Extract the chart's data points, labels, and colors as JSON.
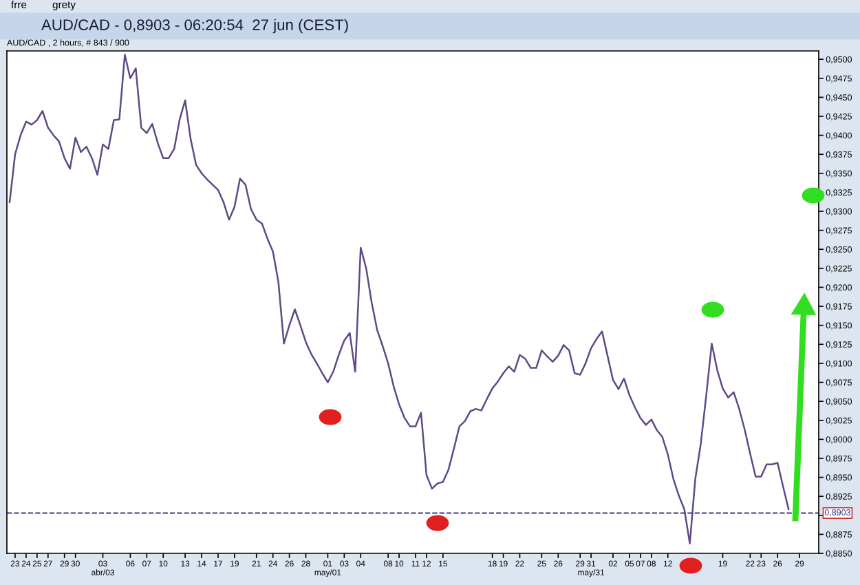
{
  "chart_data": {
    "type": "line",
    "title": "AUD/CAD - 0,8903 - 06:20:54  27 jun (CEST)",
    "subtitle": "AUD/CAD , 2 hours, # 843 / 900",
    "annotations": [
      "frre",
      "grety"
    ],
    "categories": [
      null,
      "23",
      null,
      "24",
      null,
      "25",
      null,
      "27",
      null,
      null,
      "29",
      null,
      "30",
      null,
      null,
      null,
      null,
      "03\nabr/03",
      null,
      null,
      null,
      null,
      "06",
      null,
      null,
      "07",
      null,
      null,
      "10",
      null,
      null,
      null,
      "13",
      null,
      null,
      "14",
      null,
      null,
      "17",
      null,
      null,
      "19",
      null,
      null,
      null,
      "21",
      null,
      null,
      "24",
      null,
      null,
      "26",
      null,
      null,
      "28",
      null,
      null,
      null,
      "01\nmay/01",
      null,
      null,
      "03",
      null,
      null,
      "04",
      null,
      null,
      null,
      null,
      "08",
      null,
      "10",
      null,
      null,
      "11",
      null,
      "12",
      null,
      null,
      "15",
      null,
      null,
      null,
      null,
      null,
      null,
      null,
      null,
      "18",
      null,
      "19",
      null,
      null,
      "22",
      null,
      null,
      null,
      "25",
      null,
      null,
      "26",
      null,
      null,
      null,
      "29",
      null,
      "31\nmay/31",
      null,
      null,
      null,
      "02",
      null,
      null,
      "05",
      null,
      "07",
      null,
      "08",
      null,
      null,
      "12",
      null,
      null,
      null,
      null,
      null,
      null,
      null,
      null,
      null,
      "19",
      null,
      null,
      null,
      null,
      "22",
      null,
      "23",
      null,
      null,
      "26",
      null,
      null,
      null,
      "29",
      null,
      null,
      null
    ],
    "series": [
      {
        "color": "#5e4a86",
        "values": [
          0.9312,
          0.9375,
          0.94,
          0.9418,
          0.9414,
          0.942,
          0.9432,
          0.941,
          0.94,
          0.9392,
          0.937,
          0.9356,
          0.9397,
          0.9378,
          0.9385,
          0.937,
          0.9348,
          0.9388,
          0.9382,
          0.942,
          0.9421,
          0.9506,
          0.9475,
          0.9488,
          0.941,
          0.9403,
          0.9415,
          0.939,
          0.937,
          0.937,
          0.9382,
          0.9421,
          0.9446,
          0.9395,
          0.9361,
          0.935,
          0.9342,
          0.9335,
          0.9328,
          0.9312,
          0.9289,
          0.9306,
          0.9343,
          0.9335,
          0.9303,
          0.9289,
          0.9284,
          0.9264,
          0.9247,
          0.9207,
          0.9126,
          0.915,
          0.9171,
          0.915,
          0.9128,
          0.9112,
          0.91,
          0.9087,
          0.9075,
          0.9089,
          0.9111,
          0.913,
          0.914,
          0.9089,
          0.9252,
          0.9225,
          0.918,
          0.9144,
          0.9123,
          0.91,
          0.907,
          0.9046,
          0.9028,
          0.9017,
          0.9017,
          0.9035,
          0.8953,
          0.8935,
          0.8942,
          0.8944,
          0.896,
          0.8988,
          0.9017,
          0.9024,
          0.9037,
          0.904,
          0.9038,
          0.9053,
          0.9067,
          0.9076,
          0.9087,
          0.9096,
          0.9089,
          0.9111,
          0.9106,
          0.9094,
          0.9094,
          0.9117,
          0.9109,
          0.9102,
          0.911,
          0.9124,
          0.9117,
          0.9087,
          0.9085,
          0.91,
          0.912,
          0.9132,
          0.9142,
          0.911,
          0.9078,
          0.9066,
          0.908,
          0.9058,
          0.9042,
          0.9028,
          0.9019,
          0.9026,
          0.9012,
          0.9003,
          0.898,
          0.8948,
          0.8926,
          0.8908,
          0.8863,
          0.8948,
          0.8994,
          0.9058,
          0.9126,
          0.9091,
          0.9067,
          0.9055,
          0.9062,
          0.904,
          0.9013,
          0.8981,
          0.8951,
          0.8951,
          0.8967,
          0.8967,
          0.8969,
          0.8938,
          0.8908,
          null,
          null,
          null,
          null,
          null
        ]
      }
    ],
    "ylim": [
      0.885,
      0.9511
    ],
    "yticks": [
      {
        "value": 0.885,
        "label": "0,8850"
      },
      {
        "value": 0.8875,
        "label": "0,8875"
      },
      {
        "value": 0.89,
        "label": null
      },
      {
        "value": 0.8925,
        "label": "0,8925"
      },
      {
        "value": 0.895,
        "label": "0,8950"
      },
      {
        "value": 0.8975,
        "label": "0,8975"
      },
      {
        "value": 0.9,
        "label": "0,9000"
      },
      {
        "value": 0.9025,
        "label": "0,9025"
      },
      {
        "value": 0.905,
        "label": "0,9050"
      },
      {
        "value": 0.9075,
        "label": "0,9075"
      },
      {
        "value": 0.91,
        "label": "0,9100"
      },
      {
        "value": 0.9125,
        "label": "0,9125"
      },
      {
        "value": 0.915,
        "label": "0,9150"
      },
      {
        "value": 0.9175,
        "label": "0,9175"
      },
      {
        "value": 0.92,
        "label": "0,9200"
      },
      {
        "value": 0.9225,
        "label": "0,9225"
      },
      {
        "value": 0.925,
        "label": "0,9250"
      },
      {
        "value": 0.9275,
        "label": "0,9275"
      },
      {
        "value": 0.93,
        "label": "0,9300"
      },
      {
        "value": 0.9325,
        "label": "0,9325"
      },
      {
        "value": 0.935,
        "label": "0,9350"
      },
      {
        "value": 0.9375,
        "label": "0,9375"
      },
      {
        "value": 0.94,
        "label": "0,9400"
      },
      {
        "value": 0.9425,
        "label": "0,9425"
      },
      {
        "value": 0.945,
        "label": "0,9450"
      },
      {
        "value": 0.9475,
        "label": "0,9475"
      },
      {
        "value": 0.95,
        "label": "0,9500"
      }
    ],
    "ref_lines": [
      {
        "axis": "y",
        "value": 0.8903,
        "label": "0,8903",
        "color": "#3a3a8a",
        "line_style": "dashed"
      }
    ],
    "grid": false,
    "legend": false,
    "marker": "none",
    "line_style": "solid"
  }
}
